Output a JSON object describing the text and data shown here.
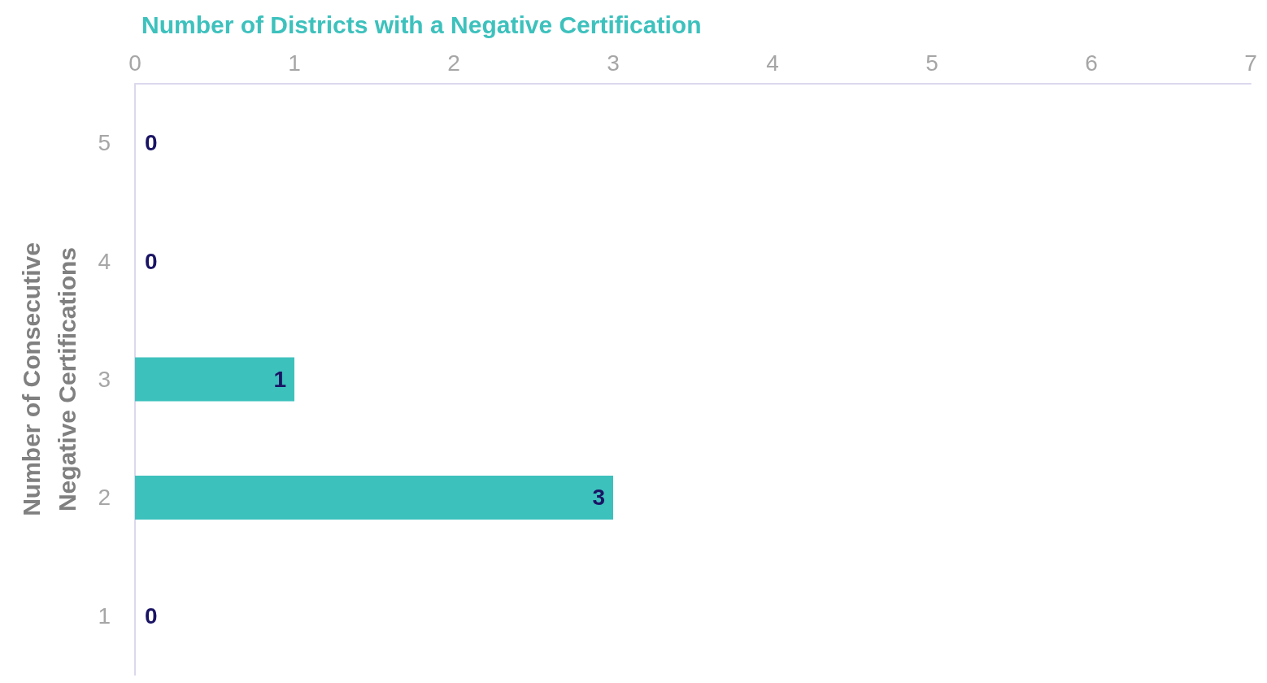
{
  "chart_data": {
    "type": "bar",
    "orientation": "horizontal",
    "xlabel": "Number of Districts with a Negative Certification",
    "ylabel": "Number of Consecutive\nNegative Certifications",
    "categories": [
      "5",
      "4",
      "3",
      "2",
      "1"
    ],
    "values": [
      0,
      0,
      1,
      3,
      0
    ],
    "color": "#3dc1bd",
    "xlim": [
      0,
      7
    ],
    "xticks": [
      0,
      1,
      2,
      3,
      4,
      5,
      6,
      7
    ],
    "data_labels": true,
    "grid": false
  }
}
